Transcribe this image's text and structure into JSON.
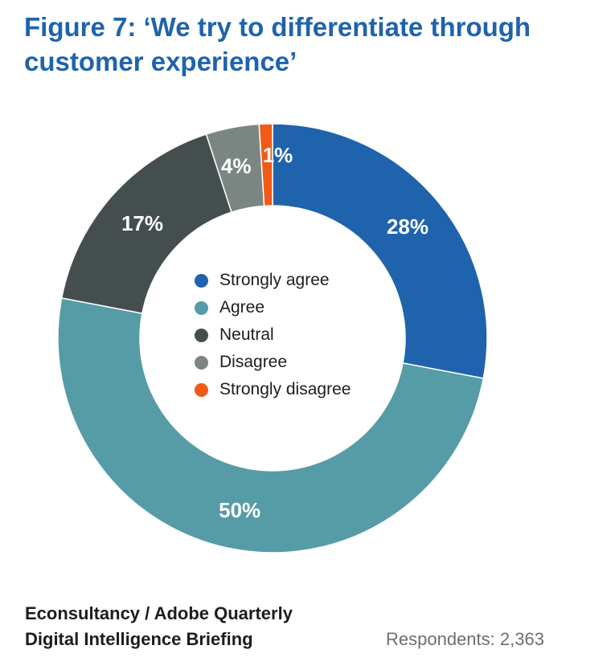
{
  "chart_data": {
    "type": "pie",
    "donut": true,
    "title": "Figure 7: ‘We try to differentiate through customer experience’",
    "categories": [
      "Strongly agree",
      "Agree",
      "Neutral",
      "Disagree",
      "Strongly disagree"
    ],
    "values": [
      28,
      50,
      17,
      4,
      1
    ],
    "labels": [
      "28%",
      "50%",
      "17%",
      "4%",
      "1%"
    ],
    "colors": [
      "#1f63ad",
      "#569ca6",
      "#454e4e",
      "#7b8682",
      "#f05a16"
    ],
    "legend_position": "center"
  },
  "footer": {
    "source_line1": "Econsultancy / Adobe Quarterly",
    "source_line2": "Digital Intelligence Briefing",
    "respondents": "Respondents: 2,363"
  }
}
